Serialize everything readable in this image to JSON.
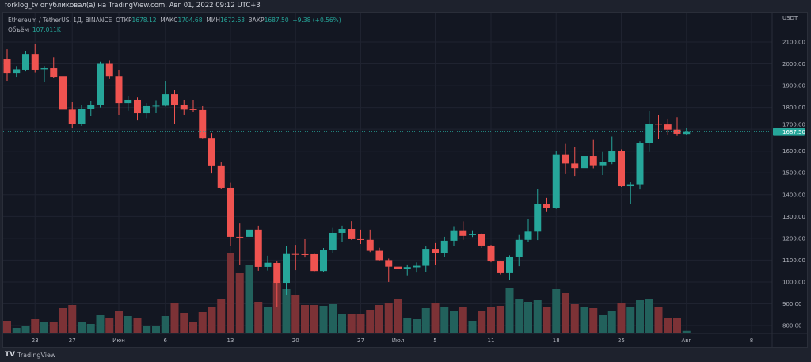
{
  "header": {
    "published_line": "forklog_tv опубликовал(а) на TradingView.com, Авг 01, 2022 09:12 UTC+3"
  },
  "legend": {
    "symbol": "Ethereum / TetherUS, 1Д, BINANCE",
    "open_label": "ОТКР",
    "open": "1678.12",
    "high_label": "МАКС",
    "high": "1704.68",
    "low_label": "МИН",
    "low": "1672.63",
    "close_label": "ЗАКР",
    "close": "1687.50",
    "change": "+9.38 (+0.56%)",
    "volume_label": "Объём",
    "volume": "107.011K"
  },
  "footer": {
    "brand": "TradingView",
    "logo_text": "TV"
  },
  "colors": {
    "up": "#26a69a",
    "down": "#ef5350",
    "up_volume": "#22615c",
    "down_volume": "#7c3236",
    "background": "#131722"
  },
  "chart_data": {
    "type": "candlestick",
    "currency": "USDT",
    "last_price_label": "1687.50",
    "ylim": [
      780,
      2160
    ],
    "y_ticks": [
      "2100.00",
      "2000.00",
      "1900.00",
      "1800.00",
      "1700.00",
      "1600.00",
      "1500.00",
      "1400.00",
      "1300.00",
      "1200.00",
      "1100.00",
      "1000.00",
      "900.00",
      "800.00"
    ],
    "x_ticks": [
      {
        "label": "23",
        "date": "2022-05-23"
      },
      {
        "label": "27",
        "date": "2022-05-27"
      },
      {
        "label": "Июн",
        "date": "2022-06-01"
      },
      {
        "label": "6",
        "date": "2022-06-06"
      },
      {
        "label": "13",
        "date": "2022-06-13"
      },
      {
        "label": "20",
        "date": "2022-06-20"
      },
      {
        "label": "27",
        "date": "2022-06-27"
      },
      {
        "label": "Июл",
        "date": "2022-07-01"
      },
      {
        "label": "5",
        "date": "2022-07-05"
      },
      {
        "label": "11",
        "date": "2022-07-11"
      },
      {
        "label": "18",
        "date": "2022-07-18"
      },
      {
        "label": "25",
        "date": "2022-07-25"
      },
      {
        "label": "Авг",
        "date": "2022-08-01"
      },
      {
        "label": "8",
        "date": "2022-08-08"
      }
    ],
    "grid": true,
    "columns": [
      "date",
      "open",
      "high",
      "low",
      "close",
      "volume_k"
    ],
    "candles": [
      [
        "2022-05-20",
        2020,
        2067,
        1922,
        1958,
        528
      ],
      [
        "2022-05-21",
        1958,
        1990,
        1940,
        1975,
        231
      ],
      [
        "2022-05-22",
        1973,
        2060,
        1965,
        2045,
        330
      ],
      [
        "2022-05-23",
        2045,
        2090,
        1960,
        1973,
        594
      ],
      [
        "2022-05-24",
        1975,
        1990,
        1918,
        1980,
        495
      ],
      [
        "2022-05-25",
        1980,
        2030,
        1935,
        1940,
        462
      ],
      [
        "2022-05-26",
        1943,
        1970,
        1737,
        1790,
        1056
      ],
      [
        "2022-05-27",
        1790,
        1824,
        1704,
        1726,
        1188
      ],
      [
        "2022-05-28",
        1726,
        1810,
        1715,
        1795,
        495
      ],
      [
        "2022-05-29",
        1792,
        1830,
        1760,
        1813,
        396
      ],
      [
        "2022-05-30",
        1813,
        2010,
        1800,
        2000,
        759
      ],
      [
        "2022-05-31",
        2000,
        2015,
        1930,
        1943,
        660
      ],
      [
        "2022-06-01",
        1943,
        1972,
        1766,
        1820,
        957
      ],
      [
        "2022-06-02",
        1820,
        1853,
        1785,
        1835,
        726
      ],
      [
        "2022-06-03",
        1835,
        1845,
        1740,
        1773,
        660
      ],
      [
        "2022-06-04",
        1773,
        1820,
        1750,
        1806,
        330
      ],
      [
        "2022-06-05",
        1806,
        1833,
        1773,
        1808,
        330
      ],
      [
        "2022-06-06",
        1808,
        1922,
        1805,
        1860,
        726
      ],
      [
        "2022-06-07",
        1860,
        1880,
        1725,
        1813,
        1287
      ],
      [
        "2022-06-08",
        1813,
        1835,
        1766,
        1790,
        858
      ],
      [
        "2022-06-09",
        1795,
        1835,
        1780,
        1788,
        495
      ],
      [
        "2022-06-10",
        1788,
        1806,
        1658,
        1660,
        891
      ],
      [
        "2022-06-11",
        1660,
        1682,
        1497,
        1534,
        1122
      ],
      [
        "2022-06-12",
        1534,
        1548,
        1425,
        1432,
        1419
      ],
      [
        "2022-06-13",
        1432,
        1455,
        1167,
        1207,
        3333
      ],
      [
        "2022-06-14",
        1207,
        1268,
        1076,
        1205,
        2508
      ],
      [
        "2022-06-15",
        1207,
        1250,
        1015,
        1240,
        2838
      ],
      [
        "2022-06-16",
        1240,
        1258,
        1051,
        1069,
        1320
      ],
      [
        "2022-06-17",
        1069,
        1120,
        1052,
        1088,
        1122
      ],
      [
        "2022-06-18",
        1087,
        1098,
        884,
        996,
        2112
      ],
      [
        "2022-06-19",
        996,
        1163,
        938,
        1128,
        1848
      ],
      [
        "2022-06-20",
        1128,
        1170,
        1054,
        1127,
        1584
      ],
      [
        "2022-06-21",
        1127,
        1196,
        1112,
        1125,
        1188
      ],
      [
        "2022-06-22",
        1127,
        1130,
        1045,
        1050,
        1188
      ],
      [
        "2022-06-23",
        1050,
        1156,
        1045,
        1145,
        1155
      ],
      [
        "2022-06-24",
        1145,
        1248,
        1133,
        1225,
        1221
      ],
      [
        "2022-06-25",
        1225,
        1258,
        1182,
        1243,
        792
      ],
      [
        "2022-06-26",
        1243,
        1279,
        1193,
        1196,
        792
      ],
      [
        "2022-06-27",
        1196,
        1240,
        1174,
        1193,
        792
      ],
      [
        "2022-06-28",
        1193,
        1240,
        1137,
        1143,
        990
      ],
      [
        "2022-06-29",
        1143,
        1157,
        1095,
        1100,
        1188
      ],
      [
        "2022-06-30",
        1100,
        1107,
        1000,
        1070,
        1287
      ],
      [
        "2022-07-01",
        1070,
        1116,
        1034,
        1058,
        1419
      ],
      [
        "2022-07-02",
        1058,
        1080,
        1030,
        1068,
        660
      ],
      [
        "2022-07-03",
        1067,
        1089,
        1043,
        1074,
        594
      ],
      [
        "2022-07-04",
        1074,
        1163,
        1046,
        1152,
        1056
      ],
      [
        "2022-07-05",
        1152,
        1178,
        1076,
        1131,
        1287
      ],
      [
        "2022-07-06",
        1131,
        1207,
        1113,
        1189,
        1089
      ],
      [
        "2022-07-07",
        1189,
        1256,
        1165,
        1237,
        924
      ],
      [
        "2022-07-08",
        1237,
        1278,
        1193,
        1211,
        1089
      ],
      [
        "2022-07-09",
        1215,
        1237,
        1206,
        1218,
        528
      ],
      [
        "2022-07-10",
        1218,
        1223,
        1156,
        1167,
        924
      ],
      [
        "2022-07-11",
        1167,
        1170,
        1090,
        1094,
        1089
      ],
      [
        "2022-07-12",
        1094,
        1098,
        1034,
        1040,
        1155
      ],
      [
        "2022-07-13",
        1040,
        1122,
        1010,
        1116,
        1881
      ],
      [
        "2022-07-14",
        1116,
        1215,
        1072,
        1193,
        1452
      ],
      [
        "2022-07-15",
        1193,
        1288,
        1185,
        1231,
        1320
      ],
      [
        "2022-07-16",
        1231,
        1425,
        1192,
        1356,
        1386
      ],
      [
        "2022-07-17",
        1356,
        1385,
        1320,
        1339,
        1122
      ],
      [
        "2022-07-18",
        1339,
        1599,
        1335,
        1582,
        1848
      ],
      [
        "2022-07-19",
        1582,
        1633,
        1494,
        1543,
        1683
      ],
      [
        "2022-07-20",
        1543,
        1620,
        1486,
        1522,
        1221
      ],
      [
        "2022-07-21",
        1522,
        1606,
        1466,
        1577,
        1122
      ],
      [
        "2022-07-22",
        1577,
        1651,
        1521,
        1535,
        1056
      ],
      [
        "2022-07-23",
        1535,
        1596,
        1490,
        1551,
        759
      ],
      [
        "2022-07-24",
        1551,
        1666,
        1540,
        1599,
        924
      ],
      [
        "2022-07-25",
        1599,
        1608,
        1436,
        1439,
        1287
      ],
      [
        "2022-07-26",
        1439,
        1457,
        1356,
        1448,
        1089
      ],
      [
        "2022-07-27",
        1448,
        1645,
        1424,
        1638,
        1386
      ],
      [
        "2022-07-28",
        1638,
        1784,
        1596,
        1725,
        1452
      ],
      [
        "2022-07-29",
        1725,
        1766,
        1657,
        1722,
        1089
      ],
      [
        "2022-07-30",
        1722,
        1748,
        1675,
        1698,
        660
      ],
      [
        "2022-07-31",
        1698,
        1754,
        1669,
        1679,
        627
      ],
      [
        "2022-08-01",
        1678.12,
        1704.68,
        1672.63,
        1687.5,
        107.011
      ]
    ]
  }
}
